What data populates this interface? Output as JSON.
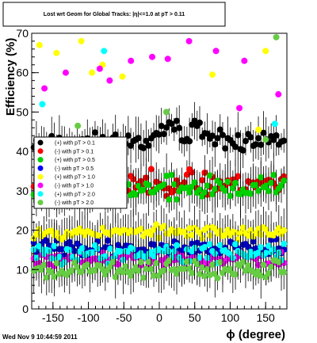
{
  "chart_data": {
    "type": "scatter",
    "title": "Lost wrt Geom for Global Tracks: |η|<=1.0 at pT > 0.11",
    "xlabel": "ϕ (degree)",
    "ylabel": "Efficiency (%)",
    "xlim": [
      -180,
      180
    ],
    "ylim": [
      0,
      70
    ],
    "x_ticks": [
      -150,
      -100,
      -50,
      0,
      50,
      100,
      150
    ],
    "y_ticks": [
      0,
      10,
      20,
      30,
      40,
      50,
      60,
      70
    ],
    "grid": false,
    "legend_position": "left-middle",
    "timestamp": "Wed Nov  9 10:44:59 2011",
    "series": [
      {
        "name": "(+) with pT > 0.1",
        "color": "#000000",
        "level": 42.5,
        "spread": 1.8,
        "seed": 11,
        "jump": [
          [
            -15,
            30,
            45.5
          ],
          [
            45,
            60,
            47
          ]
        ]
      },
      {
        "name": "(-) with pT > 0.1",
        "color": "#ff0000",
        "level": 32,
        "spread": 2.2,
        "seed": 23,
        "jump": []
      },
      {
        "name": "(+) with pT > 0.5",
        "color": "#00d000",
        "level": 30.5,
        "spread": 2.5,
        "seed": 37,
        "jump": []
      },
      {
        "name": "(-) with pT > 0.5",
        "color": "#0000ff",
        "level": 15.5,
        "spread": 1.6,
        "seed": 41,
        "jump": []
      },
      {
        "name": "(+) with pT > 1.0",
        "color": "#ffff00",
        "level": 19.5,
        "spread": 1.2,
        "seed": 53,
        "jump": []
      },
      {
        "name": "(-) with pT > 1.0",
        "color": "#ff00ff",
        "level": 12.5,
        "spread": 1.6,
        "seed": 61,
        "jump": []
      },
      {
        "name": "(+) with pT > 2.0",
        "color": "#00ffff",
        "level": 14,
        "spread": 1.8,
        "seed": 73,
        "jump": []
      },
      {
        "name": "(-) with pT > 2.0",
        "color": "#66cc44",
        "level": 10,
        "spread": 2.0,
        "seed": 89,
        "jump": []
      }
    ],
    "sparse_points": [
      {
        "x": -169,
        "y": 67,
        "color": "#ffff00"
      },
      {
        "x": -145,
        "y": 65,
        "color": "#ffff00"
      },
      {
        "x": -110,
        "y": 68,
        "color": "#ffff00"
      },
      {
        "x": -95,
        "y": 60,
        "color": "#ffff00"
      },
      {
        "x": -80,
        "y": 62,
        "color": "#ffff00"
      },
      {
        "x": -52,
        "y": 59,
        "color": "#ffff00"
      },
      {
        "x": 75,
        "y": 59.5,
        "color": "#ffff00"
      },
      {
        "x": 150,
        "y": 65.5,
        "color": "#ffff00"
      },
      {
        "x": -162,
        "y": 56,
        "color": "#ff00ff"
      },
      {
        "x": -132,
        "y": 60,
        "color": "#ff00ff"
      },
      {
        "x": -84,
        "y": 61,
        "color": "#ff00ff"
      },
      {
        "x": -70,
        "y": 58,
        "color": "#ff00ff"
      },
      {
        "x": -40,
        "y": 63,
        "color": "#ff00ff"
      },
      {
        "x": -10,
        "y": 64,
        "color": "#ff00ff"
      },
      {
        "x": 12,
        "y": 63.5,
        "color": "#ff00ff"
      },
      {
        "x": 42,
        "y": 68,
        "color": "#ff00ff"
      },
      {
        "x": 80,
        "y": 65.5,
        "color": "#ff00ff"
      },
      {
        "x": 113,
        "y": 51,
        "color": "#ff00ff"
      },
      {
        "x": 168,
        "y": 54.5,
        "color": "#ff00ff"
      },
      {
        "x": 120,
        "y": 63,
        "color": "#ff00ff"
      },
      {
        "x": -165,
        "y": 52,
        "color": "#00ffff"
      },
      {
        "x": 163,
        "y": 47,
        "color": "#00ffff"
      },
      {
        "x": -78,
        "y": 65.5,
        "color": "#00ffff"
      },
      {
        "x": 165,
        "y": 69,
        "color": "#66cc44"
      },
      {
        "x": -115,
        "y": 46.5,
        "color": "#66cc44"
      },
      {
        "x": 10,
        "y": 50,
        "color": "#66cc44"
      },
      {
        "x": 140,
        "y": 45.5,
        "color": "#ffff00"
      },
      {
        "x": 150,
        "y": 43,
        "color": "#66cc44"
      }
    ]
  }
}
